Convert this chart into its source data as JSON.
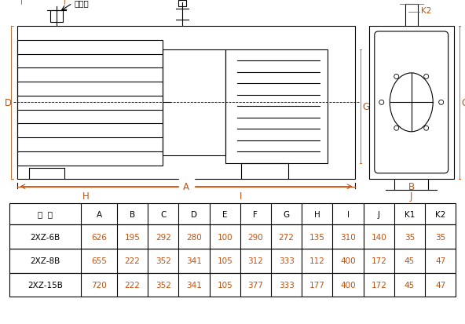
{
  "title": "",
  "table_headers": [
    "型  号",
    "A",
    "B",
    "C",
    "D",
    "E",
    "F",
    "G",
    "H",
    "I",
    "J",
    "K1",
    "K2"
  ],
  "table_rows": [
    [
      "2XZ-6B",
      "626",
      "195",
      "292",
      "280",
      "100",
      "290",
      "272",
      "135",
      "310",
      "140",
      "35",
      "35"
    ],
    [
      "2XZ-8B",
      "655",
      "222",
      "352",
      "341",
      "105",
      "312",
      "333",
      "112",
      "400",
      "172",
      "45",
      "47"
    ],
    [
      "2XZ-15B",
      "720",
      "222",
      "352",
      "341",
      "105",
      "377",
      "333",
      "177",
      "400",
      "172",
      "45",
      "47"
    ]
  ],
  "header_color": "#000000",
  "row_color": "#c8500a",
  "model_color": "#000000",
  "bg_color": "#ffffff",
  "line_color": "#000000",
  "dim_color": "#c8500a"
}
